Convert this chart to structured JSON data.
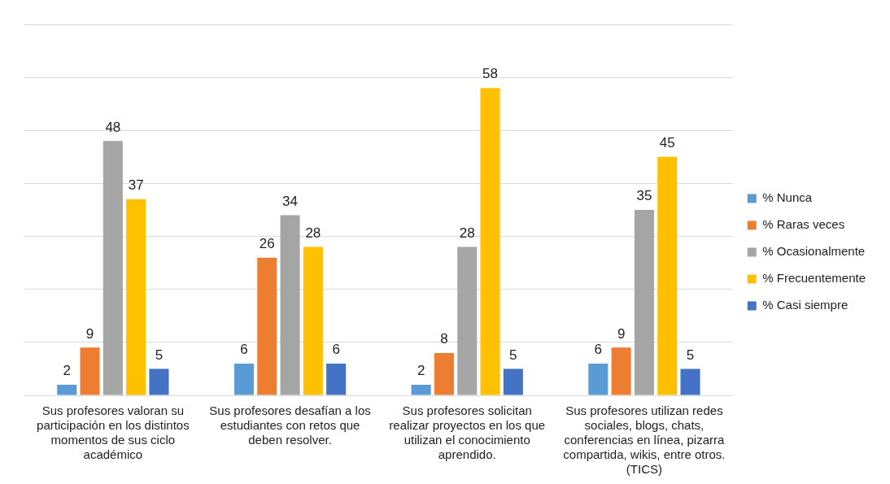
{
  "chart_data": {
    "type": "bar",
    "categories": [
      "Sus profesores valoran su participación en los distintos momentos de sus ciclo académico",
      "Sus profesores desafían a los estudiantes con retos que deben resolver.",
      "Sus profesores solicitan realizar proyectos en los que utilizan el conocimiento aprendido.",
      "Sus profesores utilizan redes sociales, blogs, chats, conferencias en línea, pizarra compartida, wikis, entre otros. (TICS)"
    ],
    "series": [
      {
        "name": "% Nunca",
        "color": "#5b9bd5",
        "values": [
          2,
          6,
          2,
          6
        ]
      },
      {
        "name": "% Raras veces",
        "color": "#ed7d31",
        "values": [
          9,
          26,
          8,
          9
        ]
      },
      {
        "name": "% Ocasionalmente",
        "color": "#a5a5a5",
        "values": [
          48,
          34,
          28,
          35
        ]
      },
      {
        "name": "% Frecuentemente",
        "color": "#ffc000",
        "values": [
          37,
          28,
          58,
          45
        ]
      },
      {
        "name": "% Casi siempre",
        "color": "#4472c4",
        "values": [
          5,
          6,
          5,
          5
        ]
      }
    ],
    "ylim": [
      0,
      70
    ],
    "yticks": [
      0,
      10,
      20,
      30,
      40,
      50,
      60,
      70
    ],
    "grid": "y",
    "tick_labels": "x",
    "legend": "right",
    "data_labels": true
  }
}
